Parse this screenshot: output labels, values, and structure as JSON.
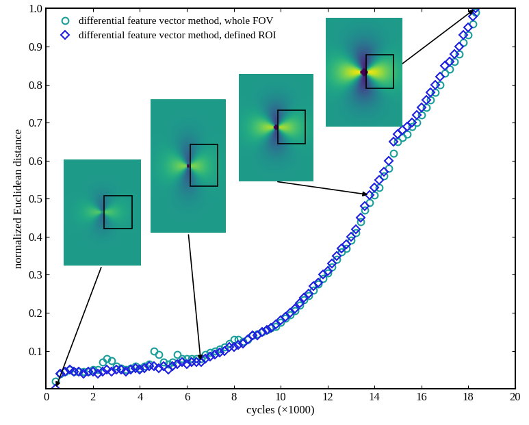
{
  "chart_data": {
    "type": "scatter",
    "x_label": "cycles (×1000)",
    "y_label": "normalized Euclidean distance",
    "xlim": [
      0,
      20
    ],
    "ylim": [
      0,
      1.0
    ],
    "xticks": [
      0,
      2,
      4,
      6,
      8,
      10,
      12,
      14,
      16,
      18,
      20
    ],
    "yticks": [
      0.1,
      0.2,
      0.3,
      0.4,
      0.5,
      0.6,
      0.7,
      0.8,
      0.9,
      {
        "value": 1,
        "label": "1.0"
      }
    ],
    "legend": "upper left",
    "grid": false,
    "x": [
      0.4,
      0.6,
      0.8,
      1.0,
      1.2,
      1.4,
      1.6,
      1.8,
      2.0,
      2.2,
      2.4,
      2.6,
      2.8,
      3.0,
      3.2,
      3.4,
      3.6,
      3.8,
      4.0,
      4.2,
      4.4,
      4.6,
      4.8,
      5.0,
      5.2,
      5.4,
      5.6,
      5.8,
      6.0,
      6.2,
      6.4,
      6.6,
      6.8,
      7.0,
      7.2,
      7.4,
      7.6,
      7.8,
      8.0,
      8.2,
      8.4,
      8.6,
      8.8,
      9.0,
      9.2,
      9.4,
      9.6,
      9.8,
      10.0,
      10.2,
      10.4,
      10.6,
      10.8,
      11.0,
      11.2,
      11.4,
      11.6,
      11.8,
      12.0,
      12.2,
      12.4,
      12.6,
      12.8,
      13.0,
      13.2,
      13.4,
      13.6,
      13.8,
      14.0,
      14.2,
      14.4,
      14.6,
      14.8,
      15.0,
      15.2,
      15.4,
      15.6,
      15.8,
      16.0,
      16.2,
      16.4,
      16.6,
      16.8,
      17.0,
      17.2,
      17.4,
      17.6,
      17.8,
      18.0,
      18.2,
      18.3
    ],
    "series": [
      {
        "name": "differential feature vector method, whole FOV",
        "color": "#1a9e9a",
        "marker": "circle",
        "values": [
          0.02,
          0.04,
          0.045,
          0.05,
          0.045,
          0.045,
          0.045,
          0.045,
          0.05,
          0.05,
          0.07,
          0.08,
          0.075,
          0.06,
          0.055,
          0.05,
          0.055,
          0.06,
          0.055,
          0.06,
          0.065,
          0.1,
          0.09,
          0.07,
          0.065,
          0.07,
          0.09,
          0.08,
          0.08,
          0.08,
          0.08,
          0.08,
          0.09,
          0.095,
          0.1,
          0.105,
          0.11,
          0.12,
          0.13,
          0.13,
          0.125,
          0.13,
          0.14,
          0.145,
          0.15,
          0.155,
          0.16,
          0.165,
          0.175,
          0.185,
          0.195,
          0.205,
          0.22,
          0.235,
          0.245,
          0.26,
          0.275,
          0.29,
          0.305,
          0.32,
          0.34,
          0.36,
          0.37,
          0.39,
          0.41,
          0.44,
          0.47,
          0.49,
          0.51,
          0.53,
          0.56,
          0.58,
          0.62,
          0.65,
          0.66,
          0.67,
          0.69,
          0.7,
          0.72,
          0.74,
          0.76,
          0.78,
          0.8,
          0.83,
          0.84,
          0.86,
          0.88,
          0.91,
          0.93,
          0.96,
          0.99
        ]
      },
      {
        "name": "differential feature vector method, defined ROI",
        "color": "#1f1fe0",
        "marker": "diamond",
        "values": [
          0.0,
          0.04,
          0.045,
          0.05,
          0.045,
          0.045,
          0.04,
          0.045,
          0.045,
          0.04,
          0.045,
          0.05,
          0.045,
          0.05,
          0.05,
          0.045,
          0.05,
          0.055,
          0.05,
          0.055,
          0.06,
          0.06,
          0.055,
          0.06,
          0.05,
          0.06,
          0.065,
          0.07,
          0.065,
          0.07,
          0.07,
          0.07,
          0.08,
          0.085,
          0.09,
          0.095,
          0.1,
          0.11,
          0.11,
          0.115,
          0.12,
          0.13,
          0.14,
          0.14,
          0.15,
          0.155,
          0.16,
          0.17,
          0.18,
          0.19,
          0.2,
          0.21,
          0.225,
          0.24,
          0.25,
          0.27,
          0.28,
          0.3,
          0.31,
          0.33,
          0.35,
          0.37,
          0.38,
          0.4,
          0.42,
          0.45,
          0.48,
          0.51,
          0.53,
          0.55,
          0.57,
          0.6,
          0.65,
          0.67,
          0.68,
          0.69,
          0.7,
          0.72,
          0.74,
          0.76,
          0.78,
          0.8,
          0.82,
          0.85,
          0.86,
          0.88,
          0.9,
          0.93,
          0.95,
          0.98,
          1.0
        ]
      }
    ]
  }
}
